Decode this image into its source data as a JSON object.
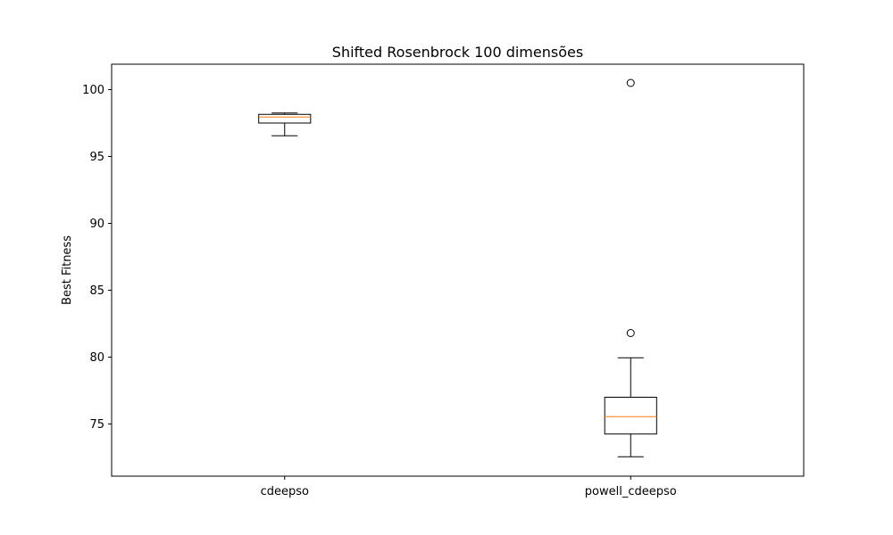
{
  "chart_data": {
    "type": "boxplot",
    "title": "Shifted Rosenbrock 100 dimensões",
    "xlabel": "",
    "ylabel": "Best Fitness",
    "ylim": [
      71.1,
      101.9
    ],
    "yticks": [
      75,
      80,
      85,
      90,
      95,
      100
    ],
    "categories": [
      "cdeepso",
      "powell_cdeepso"
    ],
    "boxes": [
      {
        "category": "cdeepso",
        "whisker_low": 96.55,
        "q1": 97.5,
        "median": 97.95,
        "q3": 98.15,
        "whisker_high": 98.25,
        "outliers": []
      },
      {
        "category": "powell_cdeepso",
        "whisker_low": 72.55,
        "q1": 74.25,
        "median": 75.55,
        "q3": 77.0,
        "whisker_high": 79.95,
        "outliers": [
          81.8,
          100.5
        ]
      }
    ],
    "grid": false,
    "colors": {
      "box": "#000000",
      "median": "#ff7f0e",
      "background": "#ffffff"
    }
  }
}
